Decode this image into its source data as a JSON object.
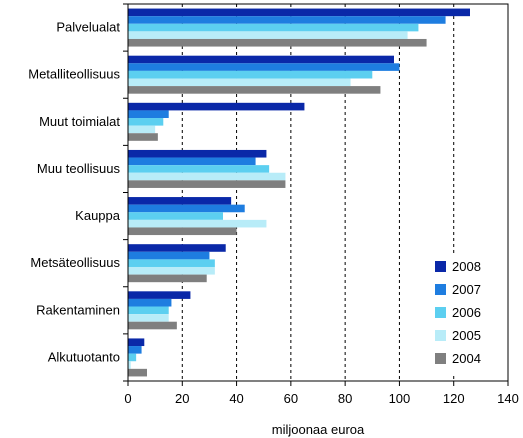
{
  "chart_data": {
    "type": "bar",
    "orientation": "horizontal",
    "xlabel": "miljoonaa euroa",
    "xlim": [
      0,
      140
    ],
    "xticks": [
      0,
      20,
      40,
      60,
      80,
      100,
      120,
      140
    ],
    "grid": "vertical-dashed",
    "legend_position": "bottom-right",
    "categories": [
      "Palvelualat",
      "Metalliteollisuus",
      "Muut toimialat",
      "Muu teollisuus",
      "Kauppa",
      "Metsäteollisuus",
      "Rakentaminen",
      "Alkutuotanto"
    ],
    "series": [
      {
        "name": "2008",
        "color": "#0a28a8",
        "values": [
          126,
          98,
          65,
          51,
          38,
          36,
          23,
          6
        ]
      },
      {
        "name": "2007",
        "color": "#1e7de0",
        "values": [
          117,
          100,
          15,
          47,
          43,
          30,
          16,
          5
        ]
      },
      {
        "name": "2006",
        "color": "#5ccff0",
        "values": [
          107,
          90,
          13,
          52,
          35,
          32,
          15,
          3
        ]
      },
      {
        "name": "2005",
        "color": "#b8ecf8",
        "values": [
          103,
          82,
          10,
          58,
          51,
          32,
          15,
          1
        ]
      },
      {
        "name": "2004",
        "color": "#7f7f7f",
        "values": [
          110,
          93,
          11,
          58,
          40,
          29,
          18,
          7
        ]
      }
    ]
  }
}
